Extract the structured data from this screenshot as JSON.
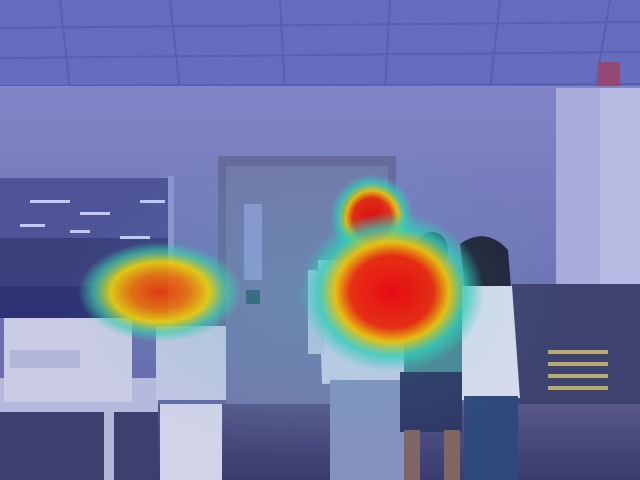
{
  "image": {
    "kind": "photo",
    "overlay": "saliency-heatmap",
    "colors": {
      "tint": "#3b3f8f",
      "heat_hot": "#ff0000",
      "heat_warm": "#ffd200",
      "heat_cool": "#33e0c0"
    }
  }
}
